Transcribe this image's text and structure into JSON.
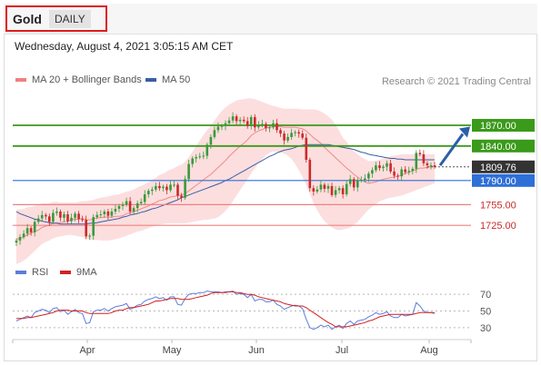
{
  "header": {
    "symbol": "Gold",
    "timeframe": "DAILY",
    "datetime": "Wednesday, August 4, 2021 3:05:15 AM CET"
  },
  "legend": {
    "ma_bb": "MA 20 + Bollinger Bands",
    "ma50": "MA 50",
    "credit": "Research © 2021 Trading Central"
  },
  "rsi_legend": {
    "rsi": "RSI",
    "ma9": "9MA"
  },
  "colors": {
    "bands": "#fcdede",
    "ma20": "#f08a8a",
    "ma50": "#3a5da8",
    "up": "#3a9a3a",
    "down": "#cc2a2a",
    "resistance": "#3a9a1a",
    "pivot": "#2f6fd8",
    "support": "#f08080",
    "last": "#333333",
    "arrow": "#2a5fa8",
    "rsi": "#5b7ed8",
    "rsi_ma": "#d42020"
  },
  "chart_data": {
    "type": "candlestick",
    "x_ticks": [
      "Apr",
      "May",
      "Jun",
      "Jul",
      "Aug"
    ],
    "y_range": [
      1670,
      1920
    ],
    "price_levels": [
      {
        "label": "1870.00",
        "value": 1870,
        "kind": "resistance"
      },
      {
        "label": "1840.00",
        "value": 1840,
        "kind": "resistance"
      },
      {
        "label": "1809.76",
        "value": 1809.76,
        "kind": "last"
      },
      {
        "label": "1790.00",
        "value": 1790,
        "kind": "pivot"
      },
      {
        "label": "1755.00",
        "value": 1755,
        "kind": "support"
      },
      {
        "label": "1725.00",
        "value": 1725,
        "kind": "support"
      }
    ],
    "closes": [
      1703,
      1708,
      1713,
      1721,
      1715,
      1730,
      1735,
      1740,
      1738,
      1730,
      1743,
      1745,
      1736,
      1741,
      1731,
      1736,
      1742,
      1734,
      1733,
      1709,
      1710,
      1737,
      1740,
      1741,
      1745,
      1739,
      1745,
      1749,
      1753,
      1755,
      1760,
      1745,
      1750,
      1757,
      1759,
      1770,
      1775,
      1777,
      1782,
      1779,
      1781,
      1776,
      1784,
      1784,
      1768,
      1765,
      1792,
      1814,
      1822,
      1824,
      1825,
      1826,
      1842,
      1853,
      1863,
      1868,
      1869,
      1873,
      1877,
      1883,
      1876,
      1878,
      1876,
      1869,
      1882,
      1867,
      1871,
      1872,
      1866,
      1867,
      1873,
      1863,
      1858,
      1848,
      1853,
      1859,
      1860,
      1858,
      1852,
      1820,
      1779,
      1774,
      1777,
      1784,
      1778,
      1782,
      1769,
      1776,
      1779,
      1770,
      1785,
      1792,
      1780,
      1790,
      1791,
      1793,
      1800,
      1805,
      1812,
      1808,
      1810,
      1815,
      1803,
      1797,
      1796,
      1806,
      1802,
      1804,
      1807,
      1830,
      1828,
      1815,
      1812,
      1812,
      1810
    ],
    "ma20": [
      1705,
      1706,
      1708,
      1711,
      1714,
      1716,
      1718,
      1722,
      1724,
      1725,
      1728,
      1729,
      1729,
      1730,
      1731,
      1733,
      1734,
      1734,
      1735,
      1733,
      1733,
      1734,
      1736,
      1736,
      1737,
      1737,
      1737,
      1738,
      1738,
      1739,
      1742,
      1743,
      1745,
      1747,
      1749,
      1751,
      1753,
      1756,
      1758,
      1761,
      1762,
      1764,
      1766,
      1767,
      1768,
      1769,
      1771,
      1775,
      1779,
      1783,
      1787,
      1791,
      1795,
      1799,
      1804,
      1809,
      1814,
      1819,
      1825,
      1830,
      1835,
      1840,
      1844,
      1849,
      1855,
      1859,
      1862,
      1864,
      1866,
      1867,
      1868,
      1868,
      1868,
      1867,
      1867,
      1867,
      1867,
      1866,
      1865,
      1862,
      1857,
      1852,
      1848,
      1844,
      1838,
      1833,
      1828,
      1823,
      1818,
      1813,
      1808,
      1804,
      1799,
      1795,
      1791,
      1788,
      1786,
      1787,
      1788,
      1790,
      1792,
      1793,
      1794,
      1795,
      1796,
      1798,
      1800,
      1802,
      1804,
      1806,
      1808,
      1808,
      1809,
      1810,
      1810
    ],
    "bb_upper": [
      1748,
      1748,
      1749,
      1751,
      1752,
      1753,
      1755,
      1757,
      1757,
      1757,
      1759,
      1759,
      1758,
      1758,
      1758,
      1758,
      1758,
      1759,
      1760,
      1760,
      1761,
      1762,
      1764,
      1765,
      1766,
      1767,
      1768,
      1769,
      1770,
      1772,
      1774,
      1775,
      1777,
      1780,
      1782,
      1785,
      1787,
      1791,
      1794,
      1798,
      1800,
      1803,
      1806,
      1808,
      1811,
      1813,
      1817,
      1824,
      1832,
      1840,
      1848,
      1856,
      1863,
      1869,
      1877,
      1884,
      1891,
      1896,
      1900,
      1903,
      1906,
      1907,
      1908,
      1909,
      1909,
      1908,
      1906,
      1904,
      1902,
      1900,
      1898,
      1897,
      1895,
      1894,
      1894,
      1894,
      1894,
      1894,
      1893,
      1893,
      1893,
      1893,
      1892,
      1890,
      1887,
      1883,
      1878,
      1871,
      1862,
      1852,
      1846,
      1838,
      1832,
      1828,
      1824,
      1821,
      1818,
      1818,
      1819,
      1820,
      1822,
      1823,
      1825,
      1826,
      1827,
      1828,
      1828,
      1828,
      1828,
      1828,
      1828,
      1828,
      1828,
      1828,
      1828
    ],
    "bb_lower": [
      1669,
      1671,
      1674,
      1678,
      1683,
      1688,
      1693,
      1698,
      1701,
      1703,
      1706,
      1708,
      1709,
      1710,
      1711,
      1711,
      1710,
      1709,
      1708,
      1706,
      1704,
      1704,
      1704,
      1703,
      1703,
      1703,
      1704,
      1705,
      1706,
      1708,
      1710,
      1712,
      1714,
      1716,
      1717,
      1719,
      1721,
      1723,
      1725,
      1726,
      1727,
      1728,
      1728,
      1728,
      1728,
      1728,
      1728,
      1729,
      1730,
      1731,
      1732,
      1733,
      1733,
      1734,
      1735,
      1737,
      1741,
      1746,
      1752,
      1760,
      1768,
      1776,
      1784,
      1792,
      1800,
      1808,
      1815,
      1821,
      1826,
      1830,
      1832,
      1832,
      1831,
      1829,
      1826,
      1821,
      1814,
      1805,
      1795,
      1783,
      1770,
      1757,
      1747,
      1738,
      1731,
      1726,
      1722,
      1719,
      1718,
      1719,
      1720,
      1722,
      1726,
      1730,
      1736,
      1742,
      1748,
      1752,
      1756,
      1760,
      1762,
      1764,
      1765,
      1766,
      1767,
      1768,
      1770,
      1772,
      1774,
      1776,
      1778,
      1780,
      1782,
      1784,
      1786
    ],
    "ma50": [
      1745,
      1742,
      1740,
      1738,
      1736,
      1734,
      1733,
      1731,
      1730,
      1729,
      1728,
      1728,
      1727,
      1727,
      1727,
      1727,
      1727,
      1727,
      1727,
      1727,
      1728,
      1728,
      1729,
      1730,
      1731,
      1732,
      1733,
      1734,
      1735,
      1737,
      1738,
      1740,
      1741,
      1742,
      1744,
      1745,
      1747,
      1749,
      1750,
      1752,
      1754,
      1756,
      1758,
      1760,
      1762,
      1765,
      1767,
      1769,
      1771,
      1773,
      1775,
      1777,
      1779,
      1781,
      1783,
      1785,
      1787,
      1790,
      1792,
      1795,
      1798,
      1801,
      1804,
      1807,
      1810,
      1813,
      1816,
      1819,
      1822,
      1825,
      1827,
      1830,
      1832,
      1834,
      1835,
      1836,
      1838,
      1840,
      1841,
      1842,
      1842,
      1842,
      1842,
      1842,
      1842,
      1842,
      1841,
      1840,
      1839,
      1838,
      1837,
      1836,
      1835,
      1833,
      1831,
      1830,
      1828,
      1827,
      1826,
      1825,
      1824,
      1823,
      1822,
      1822,
      1821,
      1821,
      1820,
      1820,
      1820,
      1820,
      1820,
      1820,
      1820,
      1820,
      1820
    ],
    "rsi": {
      "ticks": [
        30,
        50,
        70
      ],
      "y_range": [
        20,
        80
      ],
      "values": [
        38,
        40,
        42,
        44,
        42,
        48,
        50,
        52,
        51,
        48,
        53,
        54,
        49,
        51,
        46,
        49,
        52,
        48,
        47,
        35,
        36,
        49,
        51,
        51,
        53,
        50,
        53,
        55,
        56,
        57,
        59,
        52,
        54,
        57,
        58,
        62,
        64,
        65,
        67,
        65,
        66,
        63,
        67,
        67,
        58,
        57,
        65,
        70,
        71,
        71,
        72,
        72,
        74,
        73,
        73,
        73,
        72,
        73,
        73,
        74,
        70,
        71,
        70,
        66,
        70,
        62,
        64,
        64,
        61,
        61,
        63,
        58,
        56,
        52,
        54,
        56,
        57,
        56,
        53,
        40,
        30,
        28,
        30,
        33,
        31,
        33,
        28,
        31,
        33,
        29,
        35,
        38,
        34,
        38,
        39,
        40,
        43,
        45,
        48,
        46,
        47,
        49,
        44,
        42,
        42,
        46,
        44,
        45,
        46,
        60,
        56,
        50,
        48,
        48,
        47
      ],
      "ma9": [
        41,
        41,
        41,
        42,
        42,
        43,
        44,
        45,
        46,
        47,
        48,
        50,
        51,
        51,
        51,
        50,
        50,
        50,
        50,
        48,
        47,
        47,
        47,
        47,
        47,
        47,
        48,
        50,
        51,
        51,
        53,
        54,
        54,
        55,
        56,
        57,
        58,
        60,
        62,
        62,
        63,
        64,
        65,
        65,
        65,
        64,
        64,
        64,
        65,
        66,
        67,
        68,
        69,
        71,
        72,
        72,
        72,
        72,
        73,
        73,
        72,
        72,
        71,
        70,
        70,
        69,
        67,
        66,
        65,
        64,
        63,
        62,
        61,
        59,
        58,
        57,
        56,
        56,
        56,
        54,
        51,
        48,
        45,
        42,
        39,
        36,
        34,
        31,
        31,
        31,
        31,
        32,
        33,
        34,
        35,
        36,
        38,
        39,
        41,
        43,
        44,
        45,
        46,
        46,
        46,
        46,
        46,
        46,
        46,
        47,
        48,
        48,
        48,
        48,
        48
      ]
    }
  }
}
